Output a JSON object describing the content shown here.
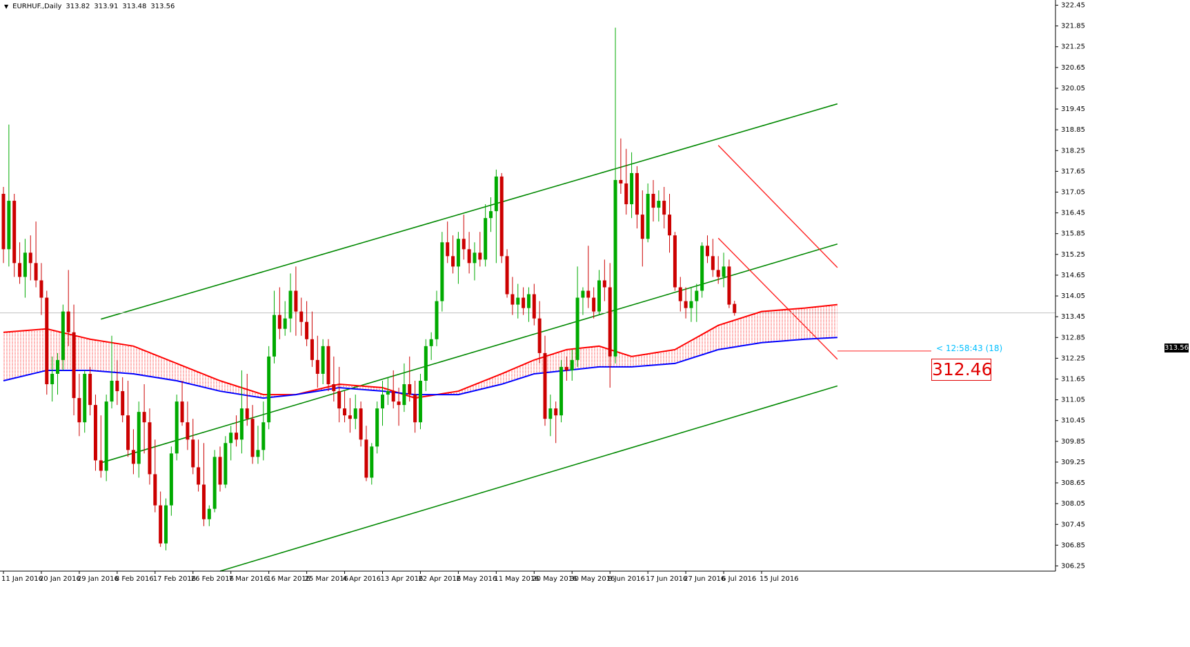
{
  "header": {
    "symbol": "EURHUF.,Daily",
    "open": "313.82",
    "high": "313.91",
    "low": "313.48",
    "close": "313.56"
  },
  "countdown": "< 12:58:43 (18)",
  "marker_label": "312.46",
  "last_price_label": "313.56",
  "colors": {
    "bull": "#00aa00",
    "bear": "#cc0000",
    "channel": "#008800",
    "ma_fast": "#ff0000",
    "ma_slow": "#0000ff",
    "down_channel": "#ff2020",
    "hatch": "#ff0000",
    "grid_line": "#c0c0c0"
  },
  "chart_data": {
    "type": "candlestick",
    "instrument": "EURHUF.",
    "timeframe": "Daily",
    "ylim": [
      306.1,
      322.6
    ],
    "y_ticks": [
      "322.45",
      "321.85",
      "321.25",
      "320.65",
      "320.05",
      "319.45",
      "318.85",
      "318.25",
      "317.65",
      "317.05",
      "316.45",
      "315.85",
      "315.25",
      "314.65",
      "314.05",
      "313.45",
      "312.85",
      "312.25",
      "311.65",
      "311.05",
      "310.45",
      "309.85",
      "309.25",
      "308.65",
      "308.05",
      "307.45",
      "306.85",
      "306.25"
    ],
    "x_ticks": [
      {
        "label": "11 Jan 2016",
        "index": 0
      },
      {
        "label": "20 Jan 2016",
        "index": 7
      },
      {
        "label": "29 Jan 2016",
        "index": 14
      },
      {
        "label": "8 Feb 2016",
        "index": 21
      },
      {
        "label": "17 Feb 2016",
        "index": 28
      },
      {
        "label": "26 Feb 2016",
        "index": 35
      },
      {
        "label": "7 Mar 2016",
        "index": 42
      },
      {
        "label": "16 Mar 2016",
        "index": 49
      },
      {
        "label": "25 Mar 2016",
        "index": 56
      },
      {
        "label": "4 Apr 2016",
        "index": 63
      },
      {
        "label": "13 Apr 2016",
        "index": 70
      },
      {
        "label": "22 Apr 2016",
        "index": 77
      },
      {
        "label": "2 May 2016",
        "index": 84
      },
      {
        "label": "11 May 2016",
        "index": 91
      },
      {
        "label": "20 May 2016",
        "index": 98
      },
      {
        "label": "30 May 2016",
        "index": 105
      },
      {
        "label": "8 Jun 2016",
        "index": 112
      },
      {
        "label": "17 Jun 2016",
        "index": 119
      },
      {
        "label": "27 Jun 2016",
        "index": 126
      },
      {
        "label": "6 Jul 2016",
        "index": 133
      },
      {
        "label": "15 Jul 2016",
        "index": 140
      }
    ],
    "candles": [
      [
        317.0,
        317.2,
        315.0,
        315.4
      ],
      [
        315.4,
        319.0,
        314.9,
        316.8
      ],
      [
        316.8,
        317.0,
        314.6,
        315.0
      ],
      [
        315.0,
        315.6,
        314.4,
        314.6
      ],
      [
        314.6,
        315.7,
        314.0,
        315.3
      ],
      [
        315.3,
        315.8,
        314.5,
        315.0
      ],
      [
        315.0,
        316.2,
        314.3,
        314.5
      ],
      [
        314.5,
        315.0,
        313.5,
        314.0
      ],
      [
        314.0,
        314.2,
        311.2,
        311.5
      ],
      [
        311.5,
        312.3,
        311.0,
        311.8
      ],
      [
        311.8,
        312.4,
        311.2,
        312.2
      ],
      [
        312.2,
        313.8,
        311.9,
        313.6
      ],
      [
        313.6,
        314.8,
        312.6,
        313.0
      ],
      [
        313.0,
        313.8,
        310.6,
        311.1
      ],
      [
        311.1,
        311.8,
        310.0,
        310.4
      ],
      [
        310.4,
        311.9,
        310.1,
        311.8
      ],
      [
        311.8,
        312.0,
        310.6,
        310.9
      ],
      [
        310.9,
        311.2,
        309.0,
        309.3
      ],
      [
        309.3,
        310.6,
        308.8,
        309.0
      ],
      [
        309.0,
        311.2,
        308.7,
        311.0
      ],
      [
        311.0,
        312.9,
        310.8,
        311.6
      ],
      [
        311.6,
        312.2,
        310.9,
        311.3
      ],
      [
        311.3,
        311.7,
        310.4,
        310.6
      ],
      [
        310.6,
        311.6,
        309.4,
        309.6
      ],
      [
        309.6,
        310.2,
        308.9,
        309.2
      ],
      [
        309.2,
        311.0,
        308.8,
        310.7
      ],
      [
        310.7,
        311.5,
        309.5,
        310.4
      ],
      [
        310.4,
        310.8,
        308.6,
        308.9
      ],
      [
        308.9,
        309.9,
        307.8,
        308.0
      ],
      [
        308.0,
        308.4,
        306.8,
        306.9
      ],
      [
        306.9,
        308.2,
        306.7,
        308.0
      ],
      [
        308.0,
        309.7,
        307.7,
        309.5
      ],
      [
        309.5,
        311.2,
        309.3,
        311.0
      ],
      [
        311.0,
        311.6,
        310.3,
        310.4
      ],
      [
        310.4,
        311.0,
        309.6,
        309.9
      ],
      [
        309.9,
        310.5,
        308.9,
        309.1
      ],
      [
        309.1,
        309.9,
        308.4,
        308.6
      ],
      [
        308.6,
        309.8,
        307.4,
        307.6
      ],
      [
        307.6,
        308.0,
        307.4,
        307.9
      ],
      [
        307.9,
        309.6,
        307.8,
        309.4
      ],
      [
        309.4,
        309.7,
        308.4,
        308.6
      ],
      [
        308.6,
        310.0,
        308.5,
        309.8
      ],
      [
        309.8,
        310.3,
        309.3,
        310.1
      ],
      [
        310.1,
        310.6,
        309.7,
        309.9
      ],
      [
        309.9,
        311.9,
        309.5,
        310.8
      ],
      [
        310.8,
        311.8,
        310.3,
        310.5
      ],
      [
        310.5,
        310.9,
        309.2,
        309.4
      ],
      [
        309.4,
        310.3,
        309.2,
        309.6
      ],
      [
        309.6,
        311.0,
        309.3,
        310.4
      ],
      [
        310.4,
        312.6,
        310.2,
        312.3
      ],
      [
        312.3,
        314.2,
        312.1,
        313.5
      ],
      [
        313.5,
        314.3,
        312.8,
        313.1
      ],
      [
        313.1,
        313.9,
        312.9,
        313.4
      ],
      [
        313.4,
        314.7,
        313.0,
        314.2
      ],
      [
        314.2,
        314.9,
        312.9,
        313.6
      ],
      [
        313.6,
        314.0,
        312.9,
        313.3
      ],
      [
        313.3,
        313.9,
        312.6,
        312.8
      ],
      [
        312.8,
        313.6,
        312.0,
        312.2
      ],
      [
        312.2,
        312.9,
        311.4,
        311.8
      ],
      [
        311.8,
        312.8,
        311.5,
        312.6
      ],
      [
        312.6,
        312.8,
        311.3,
        311.5
      ],
      [
        311.5,
        312.3,
        311.0,
        311.3
      ],
      [
        311.3,
        312.0,
        310.4,
        310.8
      ],
      [
        310.8,
        311.3,
        310.4,
        310.6
      ],
      [
        310.6,
        311.1,
        310.1,
        310.5
      ],
      [
        310.5,
        311.2,
        310.2,
        310.8
      ],
      [
        310.8,
        311.0,
        309.7,
        309.9
      ],
      [
        309.9,
        310.3,
        308.7,
        308.8
      ],
      [
        308.8,
        309.8,
        308.6,
        309.7
      ],
      [
        309.7,
        311.0,
        309.5,
        310.8
      ],
      [
        310.8,
        311.6,
        310.3,
        311.2
      ],
      [
        311.2,
        311.7,
        310.9,
        311.3
      ],
      [
        311.3,
        311.9,
        310.8,
        311.0
      ],
      [
        311.0,
        311.4,
        310.3,
        310.9
      ],
      [
        310.9,
        312.1,
        310.7,
        311.5
      ],
      [
        311.5,
        312.3,
        311.0,
        311.2
      ],
      [
        311.2,
        311.6,
        310.1,
        310.4
      ],
      [
        310.4,
        311.8,
        310.2,
        311.6
      ],
      [
        311.6,
        312.8,
        311.3,
        312.6
      ],
      [
        312.6,
        313.0,
        312.2,
        312.8
      ],
      [
        312.8,
        314.2,
        312.6,
        313.9
      ],
      [
        313.9,
        315.9,
        313.6,
        315.6
      ],
      [
        315.6,
        316.2,
        315.0,
        315.2
      ],
      [
        315.2,
        315.8,
        314.7,
        314.9
      ],
      [
        314.9,
        315.9,
        314.4,
        315.7
      ],
      [
        315.7,
        316.4,
        315.1,
        315.4
      ],
      [
        315.4,
        315.9,
        314.7,
        315.0
      ],
      [
        315.0,
        315.6,
        314.5,
        315.3
      ],
      [
        315.3,
        315.9,
        314.9,
        315.1
      ],
      [
        315.1,
        316.7,
        314.9,
        316.3
      ],
      [
        316.3,
        316.9,
        315.9,
        316.5
      ],
      [
        316.5,
        317.7,
        315.0,
        317.5
      ],
      [
        317.5,
        317.6,
        315.0,
        315.2
      ],
      [
        315.2,
        315.4,
        314.0,
        314.1
      ],
      [
        314.1,
        314.6,
        313.5,
        313.8
      ],
      [
        313.8,
        314.4,
        313.4,
        314.0
      ],
      [
        314.0,
        314.3,
        313.5,
        313.7
      ],
      [
        313.7,
        314.3,
        313.3,
        314.1
      ],
      [
        314.1,
        314.4,
        313.2,
        313.4
      ],
      [
        313.4,
        313.9,
        312.1,
        312.4
      ],
      [
        312.4,
        312.9,
        310.3,
        310.5
      ],
      [
        310.5,
        311.2,
        310.0,
        310.8
      ],
      [
        310.8,
        311.0,
        309.8,
        310.6
      ],
      [
        310.6,
        312.2,
        310.4,
        312.0
      ],
      [
        312.0,
        312.3,
        311.6,
        311.9
      ],
      [
        311.9,
        312.5,
        311.6,
        312.2
      ],
      [
        312.2,
        314.9,
        312.0,
        314.0
      ],
      [
        314.0,
        314.3,
        313.5,
        314.2
      ],
      [
        314.2,
        315.5,
        313.7,
        314.0
      ],
      [
        314.0,
        314.3,
        313.4,
        313.6
      ],
      [
        313.6,
        314.8,
        313.5,
        314.5
      ],
      [
        314.5,
        315.1,
        313.9,
        314.3
      ],
      [
        314.3,
        315.0,
        311.4,
        312.3
      ],
      [
        312.3,
        321.8,
        312.1,
        317.4
      ],
      [
        317.4,
        318.6,
        317.0,
        317.3
      ],
      [
        317.3,
        318.3,
        316.4,
        316.7
      ],
      [
        316.7,
        318.2,
        316.3,
        317.6
      ],
      [
        317.6,
        317.8,
        316.0,
        316.4
      ],
      [
        316.4,
        317.1,
        314.9,
        315.7
      ],
      [
        315.7,
        317.3,
        315.6,
        317.0
      ],
      [
        317.0,
        317.4,
        316.2,
        316.6
      ],
      [
        316.6,
        317.1,
        316.2,
        316.8
      ],
      [
        316.8,
        317.2,
        316.0,
        316.4
      ],
      [
        316.4,
        317.0,
        315.3,
        315.8
      ],
      [
        315.8,
        315.9,
        314.2,
        314.3
      ],
      [
        314.3,
        314.6,
        313.6,
        313.9
      ],
      [
        313.9,
        314.3,
        313.4,
        313.7
      ],
      [
        313.7,
        314.3,
        313.3,
        313.9
      ],
      [
        313.9,
        314.4,
        313.3,
        314.2
      ],
      [
        314.2,
        315.6,
        314.0,
        315.5
      ],
      [
        315.5,
        315.8,
        315.0,
        315.2
      ],
      [
        315.2,
        315.7,
        314.6,
        314.8
      ],
      [
        314.8,
        315.2,
        314.4,
        314.6
      ],
      [
        314.6,
        315.3,
        314.3,
        314.9
      ],
      [
        314.9,
        315.1,
        313.7,
        313.8
      ],
      [
        313.82,
        313.91,
        313.48,
        313.56
      ]
    ],
    "channel_lines": [
      {
        "name": "",
        "x": [
          18,
          154
        ],
        "y": [
          313.38,
          319.6
        ]
      },
      {
        "name": "",
        "x": [
          18,
          154
        ],
        "y": [
          309.23,
          315.55
        ]
      },
      {
        "name": "",
        "x": [
          40,
          154
        ],
        "y": [
          306.1,
          311.45
        ]
      }
    ],
    "down_channel_lines": [
      {
        "x": [
          132,
          154
        ],
        "y": [
          318.4,
          314.87
        ]
      },
      {
        "x": [
          132,
          154
        ],
        "y": [
          315.72,
          312.22
        ]
      }
    ],
    "ma_fast": [
      [
        0,
        313.0
      ],
      [
        8,
        313.1
      ],
      [
        16,
        312.8
      ],
      [
        24,
        312.6
      ],
      [
        32,
        312.1
      ],
      [
        40,
        311.6
      ],
      [
        48,
        311.2
      ],
      [
        54,
        311.2
      ],
      [
        62,
        311.5
      ],
      [
        70,
        311.4
      ],
      [
        76,
        311.1
      ],
      [
        84,
        311.3
      ],
      [
        92,
        311.8
      ],
      [
        98,
        312.2
      ],
      [
        104,
        312.5
      ],
      [
        110,
        312.6
      ],
      [
        116,
        312.3
      ],
      [
        124,
        312.5
      ],
      [
        132,
        313.2
      ],
      [
        140,
        313.6
      ],
      [
        148,
        313.7
      ],
      [
        154,
        313.8
      ]
    ],
    "ma_slow": [
      [
        0,
        311.6
      ],
      [
        8,
        311.9
      ],
      [
        16,
        311.9
      ],
      [
        24,
        311.8
      ],
      [
        32,
        311.6
      ],
      [
        40,
        311.3
      ],
      [
        48,
        311.1
      ],
      [
        54,
        311.2
      ],
      [
        62,
        311.4
      ],
      [
        70,
        311.3
      ],
      [
        76,
        311.2
      ],
      [
        84,
        311.2
      ],
      [
        92,
        311.5
      ],
      [
        98,
        311.8
      ],
      [
        104,
        311.9
      ],
      [
        110,
        312.0
      ],
      [
        116,
        312.0
      ],
      [
        124,
        312.1
      ],
      [
        132,
        312.5
      ],
      [
        140,
        312.7
      ],
      [
        148,
        312.8
      ],
      [
        154,
        312.85
      ]
    ]
  }
}
